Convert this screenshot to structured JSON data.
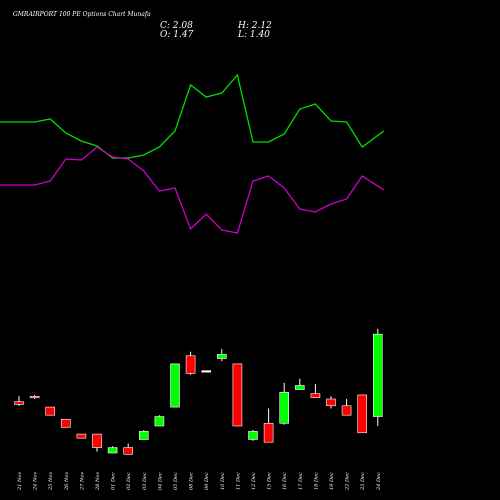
{
  "chart_data": {
    "type": "candlestick",
    "title": "GMRAIRPORT 100  PE Options  Chart Munafa",
    "ohlc_text": {
      "open": "O: 1.47",
      "high": "H: 2.12",
      "low": "L: 1.40",
      "close": "C: 2.08"
    },
    "categories": [
      "21 Nov",
      "24 Nov",
      "25 Nov",
      "26 Nov",
      "27 Nov",
      "28 Nov",
      "01 Dec",
      "02 Dec",
      "03 Dec",
      "04 Dec",
      "05 Dec",
      "08 Dec",
      "09 Dec",
      "10 Dec",
      "11 Dec",
      "12 Dec",
      "15 Dec",
      "16 Dec",
      "17 Dec",
      "18 Dec",
      "19 Dec",
      "22 Dec",
      "23 Dec",
      "24 Dec"
    ],
    "price_range": [
      1.0,
      3.0
    ],
    "candles": [
      {
        "open": 1.58,
        "high": 1.62,
        "low": 1.55,
        "close": 1.56
      },
      {
        "open": 1.62,
        "high": 1.63,
        "low": 1.6,
        "close": 1.61
      },
      {
        "open": 1.54,
        "high": 1.54,
        "low": 1.48,
        "close": 1.48
      },
      {
        "open": 1.45,
        "high": 1.45,
        "low": 1.39,
        "close": 1.39
      },
      {
        "open": 1.34,
        "high": 1.34,
        "low": 1.31,
        "close": 1.31
      },
      {
        "open": 1.34,
        "high": 1.34,
        "low": 1.21,
        "close": 1.24
      },
      {
        "open": 1.2,
        "high": 1.25,
        "low": 1.2,
        "close": 1.24
      },
      {
        "open": 1.24,
        "high": 1.27,
        "low": 1.19,
        "close": 1.19
      },
      {
        "open": 1.3,
        "high": 1.37,
        "low": 1.3,
        "close": 1.36
      },
      {
        "open": 1.4,
        "high": 1.48,
        "low": 1.4,
        "close": 1.47
      },
      {
        "open": 1.54,
        "high": 1.86,
        "low": 1.54,
        "close": 1.86
      },
      {
        "open": 1.92,
        "high": 1.95,
        "low": 1.78,
        "close": 1.79
      },
      {
        "open": 1.81,
        "high": 1.81,
        "low": 1.81,
        "close": 1.81
      },
      {
        "open": 1.9,
        "high": 1.97,
        "low": 1.88,
        "close": 1.93
      },
      {
        "open": 1.86,
        "high": 1.86,
        "low": 1.4,
        "close": 1.4
      },
      {
        "open": 1.3,
        "high": 1.37,
        "low": 1.29,
        "close": 1.36
      },
      {
        "open": 1.42,
        "high": 1.53,
        "low": 1.28,
        "close": 1.28
      },
      {
        "open": 1.42,
        "high": 1.72,
        "low": 1.41,
        "close": 1.65
      },
      {
        "open": 1.67,
        "high": 1.75,
        "low": 1.67,
        "close": 1.7
      },
      {
        "open": 1.64,
        "high": 1.71,
        "low": 1.61,
        "close": 1.61
      },
      {
        "open": 1.6,
        "high": 1.62,
        "low": 1.53,
        "close": 1.55
      },
      {
        "open": 1.55,
        "high": 1.6,
        "low": 1.48,
        "close": 1.48
      },
      {
        "open": 1.63,
        "high": 1.63,
        "low": 1.35,
        "close": 1.35
      },
      {
        "open": 1.47,
        "high": 2.12,
        "low": 1.4,
        "close": 2.08
      }
    ],
    "green_line": [
      122,
      122,
      119,
      133,
      141,
      146,
      158,
      158,
      155,
      147,
      131,
      85,
      97,
      93,
      75,
      142,
      142,
      134,
      109,
      104,
      121,
      122,
      147,
      131
    ],
    "magenta_line": [
      185,
      185,
      181,
      159,
      160,
      147,
      157,
      159,
      171,
      191,
      188,
      229,
      214,
      230,
      233,
      181,
      176,
      188,
      209,
      212,
      204,
      199,
      176,
      190
    ],
    "colors": {
      "background": "#000000",
      "up": "#00ff00",
      "down": "#ff0000",
      "neutral": "#ffffff",
      "line_green": "#00dd00",
      "line_magenta": "#cc00cc"
    }
  }
}
